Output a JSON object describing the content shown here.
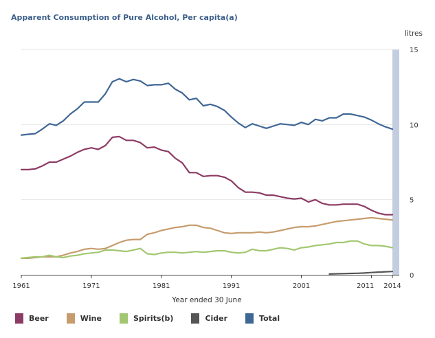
{
  "chart_data": {
    "type": "line",
    "title": "Apparent Consumption of Pure Alcohol, Per capita(a)",
    "xlabel": "Year ended 30 June",
    "ylabel": "litres",
    "x_range": [
      1961,
      2014
    ],
    "ylim": [
      0,
      15
    ],
    "x_ticks": [
      1961,
      1971,
      1981,
      1991,
      2001,
      2011,
      2014
    ],
    "y_ticks": [
      0,
      5,
      10,
      15
    ],
    "grid": true,
    "legend_position": "bottom",
    "series": [
      {
        "name": "Beer",
        "color": "#8c3b64",
        "x": [
          1961,
          1962,
          1963,
          1964,
          1965,
          1966,
          1967,
          1968,
          1969,
          1970,
          1971,
          1972,
          1973,
          1974,
          1975,
          1976,
          1977,
          1978,
          1979,
          1980,
          1981,
          1982,
          1983,
          1984,
          1985,
          1986,
          1987,
          1988,
          1989,
          1990,
          1991,
          1992,
          1993,
          1994,
          1995,
          1996,
          1997,
          1998,
          1999,
          2000,
          2001,
          2002,
          2003,
          2004,
          2005,
          2006,
          2007,
          2008,
          2009,
          2010,
          2011,
          2012,
          2013,
          2014
        ],
        "values": [
          7.0,
          7.0,
          7.05,
          7.25,
          7.5,
          7.5,
          7.7,
          7.9,
          8.15,
          8.35,
          8.45,
          8.35,
          8.6,
          9.15,
          9.2,
          8.95,
          8.95,
          8.8,
          8.45,
          8.5,
          8.3,
          8.2,
          7.75,
          7.45,
          6.8,
          6.8,
          6.55,
          6.6,
          6.6,
          6.5,
          6.25,
          5.8,
          5.5,
          5.5,
          5.45,
          5.3,
          5.3,
          5.2,
          5.1,
          5.05,
          5.1,
          4.85,
          5.0,
          4.75,
          4.65,
          4.65,
          4.7,
          4.7,
          4.7,
          4.55,
          4.3,
          4.1,
          4.0,
          4.0
        ]
      },
      {
        "name": "Wine",
        "color": "#c69c6d",
        "x": [
          1961,
          1962,
          1963,
          1964,
          1965,
          1966,
          1967,
          1968,
          1969,
          1970,
          1971,
          1972,
          1973,
          1974,
          1975,
          1976,
          1977,
          1978,
          1979,
          1980,
          1981,
          1982,
          1983,
          1984,
          1985,
          1986,
          1987,
          1988,
          1989,
          1990,
          1991,
          1992,
          1993,
          1994,
          1995,
          1996,
          1997,
          1998,
          1999,
          2000,
          2001,
          2002,
          2003,
          2004,
          2005,
          2006,
          2007,
          2008,
          2009,
          2010,
          2011,
          2012,
          2013,
          2014
        ],
        "values": [
          1.1,
          1.1,
          1.15,
          1.2,
          1.2,
          1.2,
          1.3,
          1.45,
          1.55,
          1.7,
          1.75,
          1.7,
          1.75,
          1.95,
          2.15,
          2.3,
          2.35,
          2.35,
          2.7,
          2.8,
          2.95,
          3.05,
          3.15,
          3.2,
          3.3,
          3.3,
          3.15,
          3.1,
          2.95,
          2.8,
          2.75,
          2.8,
          2.8,
          2.8,
          2.85,
          2.8,
          2.85,
          2.95,
          3.05,
          3.15,
          3.2,
          3.2,
          3.25,
          3.35,
          3.45,
          3.55,
          3.6,
          3.65,
          3.7,
          3.75,
          3.8,
          3.75,
          3.7,
          3.65
        ]
      },
      {
        "name": "Spirits(b)",
        "color": "#a2c770",
        "x": [
          1961,
          1962,
          1963,
          1964,
          1965,
          1966,
          1967,
          1968,
          1969,
          1970,
          1971,
          1972,
          1973,
          1974,
          1975,
          1976,
          1977,
          1978,
          1979,
          1980,
          1981,
          1982,
          1983,
          1984,
          1985,
          1986,
          1987,
          1988,
          1989,
          1990,
          1991,
          1992,
          1993,
          1994,
          1995,
          1996,
          1997,
          1998,
          1999,
          2000,
          2001,
          2002,
          2003,
          2004,
          2005,
          2006,
          2007,
          2008,
          2009,
          2010,
          2011,
          2012,
          2013,
          2014
        ],
        "values": [
          1.1,
          1.15,
          1.2,
          1.2,
          1.3,
          1.2,
          1.15,
          1.25,
          1.3,
          1.4,
          1.45,
          1.5,
          1.65,
          1.65,
          1.6,
          1.55,
          1.65,
          1.75,
          1.4,
          1.35,
          1.45,
          1.5,
          1.5,
          1.45,
          1.5,
          1.55,
          1.5,
          1.55,
          1.6,
          1.6,
          1.5,
          1.45,
          1.5,
          1.7,
          1.6,
          1.6,
          1.7,
          1.8,
          1.75,
          1.65,
          1.8,
          1.85,
          1.95,
          2.0,
          2.05,
          2.15,
          2.15,
          2.25,
          2.25,
          2.05,
          1.95,
          1.95,
          1.9,
          1.8
        ]
      },
      {
        "name": "Cider",
        "color": "#555555",
        "x": [
          2005,
          2006,
          2007,
          2008,
          2009,
          2010,
          2011,
          2012,
          2013,
          2014
        ],
        "values": [
          0.05,
          0.07,
          0.08,
          0.09,
          0.1,
          0.12,
          0.15,
          0.18,
          0.2,
          0.22
        ]
      },
      {
        "name": "Total",
        "color": "#3f6795",
        "x": [
          1961,
          1962,
          1963,
          1964,
          1965,
          1966,
          1967,
          1968,
          1969,
          1970,
          1971,
          1972,
          1973,
          1974,
          1975,
          1976,
          1977,
          1978,
          1979,
          1980,
          1981,
          1982,
          1983,
          1984,
          1985,
          1986,
          1987,
          1988,
          1989,
          1990,
          1991,
          1992,
          1993,
          1994,
          1995,
          1996,
          1997,
          1998,
          1999,
          2000,
          2001,
          2002,
          2003,
          2004,
          2005,
          2006,
          2007,
          2008,
          2009,
          2010,
          2011,
          2012,
          2013,
          2014
        ],
        "values": [
          9.3,
          9.35,
          9.4,
          9.7,
          10.05,
          9.95,
          10.25,
          10.7,
          11.05,
          11.5,
          11.5,
          11.5,
          12.05,
          12.85,
          13.05,
          12.85,
          13.0,
          12.9,
          12.6,
          12.65,
          12.65,
          12.75,
          12.35,
          12.1,
          11.65,
          11.75,
          11.25,
          11.35,
          11.2,
          10.95,
          10.5,
          10.1,
          9.8,
          10.05,
          9.9,
          9.75,
          9.9,
          10.05,
          10.0,
          9.95,
          10.15,
          10.0,
          10.35,
          10.25,
          10.45,
          10.45,
          10.7,
          10.7,
          10.6,
          10.5,
          10.3,
          10.05,
          9.85,
          9.7
        ]
      }
    ]
  }
}
